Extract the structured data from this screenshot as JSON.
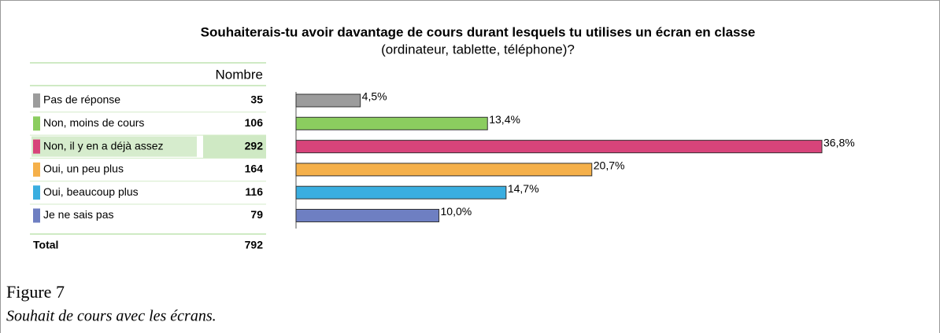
{
  "chart_data": {
    "type": "bar",
    "orientation": "horizontal",
    "title": "Souhaiterais-tu avoir davantage de cours durant lesquels tu utilises un écran en classe",
    "subtitle": "(ordinateur, tablette, téléphone)?",
    "categories": [
      "Pas de réponse",
      "Non, moins de cours",
      "Non, il y en a déjà assez",
      "Oui, un peu plus",
      "Oui, beaucoup plus",
      "Je ne sais pas"
    ],
    "values": [
      4.5,
      13.4,
      36.8,
      20.7,
      14.7,
      10.0
    ],
    "value_labels": [
      "4,5%",
      "13,4%",
      "36,8%",
      "20,7%",
      "14,7%",
      "10,0%"
    ],
    "colors": [
      "#9c9c9c",
      "#8bcd5f",
      "#d7447a",
      "#f5b04a",
      "#3aaee0",
      "#6e7fc2"
    ]
  },
  "table": {
    "column_header": "Nombre",
    "counts": [
      35,
      106,
      292,
      164,
      116,
      79
    ],
    "total_label": "Total",
    "total": 792
  },
  "figure": {
    "label": "Figure 7",
    "caption": "Souhait de cours avec les écrans."
  }
}
